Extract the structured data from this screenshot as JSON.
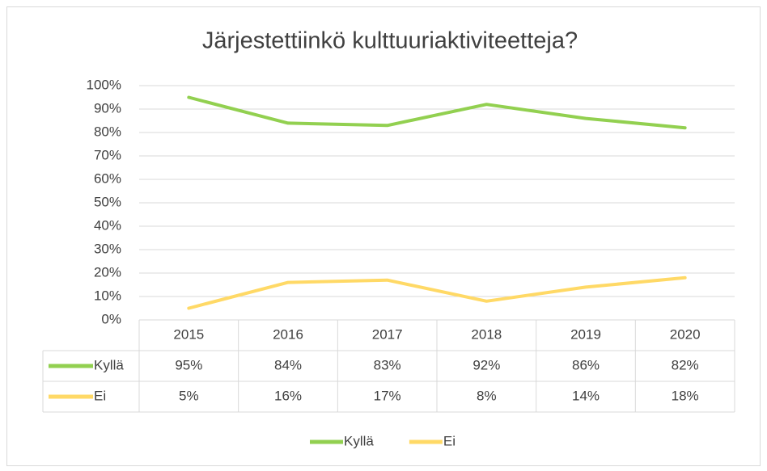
{
  "chart_data": {
    "type": "line",
    "title": "Järjestettiinkö kulttuuriaktiviteetteja?",
    "categories": [
      "2015",
      "2016",
      "2017",
      "2018",
      "2019",
      "2020"
    ],
    "series": [
      {
        "name": "Kyllä",
        "color": "#92d050",
        "values": [
          95,
          84,
          83,
          92,
          86,
          82
        ],
        "value_labels": [
          "95%",
          "84%",
          "83%",
          "92%",
          "86%",
          "82%"
        ]
      },
      {
        "name": "Ei",
        "color": "#ffd966",
        "values": [
          5,
          16,
          17,
          8,
          14,
          18
        ],
        "value_labels": [
          "5%",
          "16%",
          "17%",
          "8%",
          "14%",
          "18%"
        ]
      }
    ],
    "ylim": [
      0,
      100
    ],
    "yticks": [
      {
        "value": 0,
        "label": "0%"
      },
      {
        "value": 10,
        "label": "10%"
      },
      {
        "value": 20,
        "label": "20%"
      },
      {
        "value": 30,
        "label": "30%"
      },
      {
        "value": 40,
        "label": "40%"
      },
      {
        "value": 50,
        "label": "50%"
      },
      {
        "value": 60,
        "label": "60%"
      },
      {
        "value": 70,
        "label": "70%"
      },
      {
        "value": 80,
        "label": "80%"
      },
      {
        "value": 90,
        "label": "90%"
      },
      {
        "value": 100,
        "label": "100%"
      }
    ],
    "grid": true,
    "legend": "bottom"
  }
}
